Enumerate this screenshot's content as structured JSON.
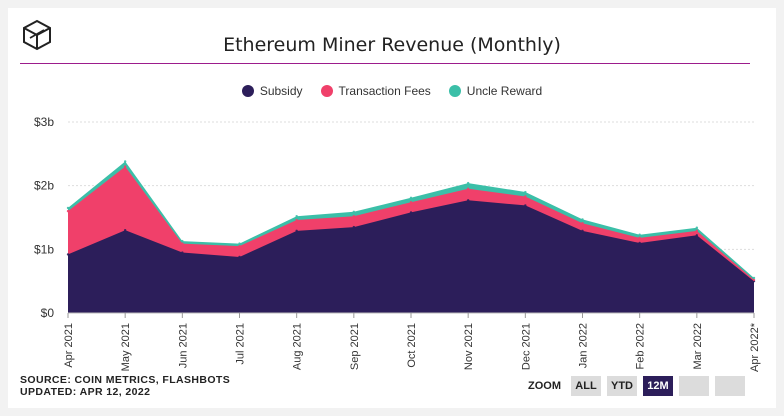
{
  "header": {
    "title": "Ethereum Miner Revenue (Monthly)"
  },
  "legend": [
    {
      "label": "Subsidy",
      "color": "#2c1e5a"
    },
    {
      "label": "Transaction Fees",
      "color": "#f0406a"
    },
    {
      "label": "Uncle Reward",
      "color": "#3bbfa8"
    }
  ],
  "zoom": {
    "label": "ZOOM",
    "buttons": [
      {
        "label": "ALL",
        "active": false
      },
      {
        "label": "YTD",
        "active": false
      },
      {
        "label": "12M",
        "active": true
      },
      {
        "label": "",
        "active": false
      },
      {
        "label": "",
        "active": false
      }
    ]
  },
  "footer": {
    "source": "SOURCE: COIN METRICS, FLASHBOTS",
    "updated": "UPDATED: APR 12, 2022"
  },
  "chart_data": {
    "type": "area",
    "stacked": true,
    "title": "Ethereum Miner Revenue (Monthly)",
    "xlabel": "",
    "ylabel": "",
    "ylim": [
      0,
      3
    ],
    "yticks": [
      0,
      1,
      2,
      3
    ],
    "ytick_labels": [
      "$0",
      "$1b",
      "$2b",
      "$3b"
    ],
    "grid": true,
    "legend_position": "top-center",
    "categories": [
      "Apr 2021",
      "May 2021",
      "Jun 2021",
      "Jul 2021",
      "Aug 2021",
      "Sep 2021",
      "Oct 2021",
      "Nov 2021",
      "Dec 2021",
      "Jan 2022",
      "Feb 2022",
      "Mar 2022",
      "Apr 2022*"
    ],
    "series": [
      {
        "name": "Subsidy",
        "color": "#2c1e5a",
        "values": [
          0.92,
          1.3,
          0.95,
          0.88,
          1.29,
          1.35,
          1.58,
          1.77,
          1.69,
          1.29,
          1.1,
          1.22,
          0.5
        ]
      },
      {
        "name": "Transaction Fees",
        "color": "#f0406a",
        "values": [
          0.68,
          1.0,
          0.14,
          0.17,
          0.17,
          0.17,
          0.16,
          0.18,
          0.14,
          0.12,
          0.08,
          0.07,
          0.02
        ]
      },
      {
        "name": "Uncle Reward",
        "color": "#3bbfa8",
        "values": [
          0.05,
          0.08,
          0.04,
          0.04,
          0.06,
          0.07,
          0.07,
          0.09,
          0.07,
          0.06,
          0.05,
          0.05,
          0.03
        ]
      }
    ]
  }
}
